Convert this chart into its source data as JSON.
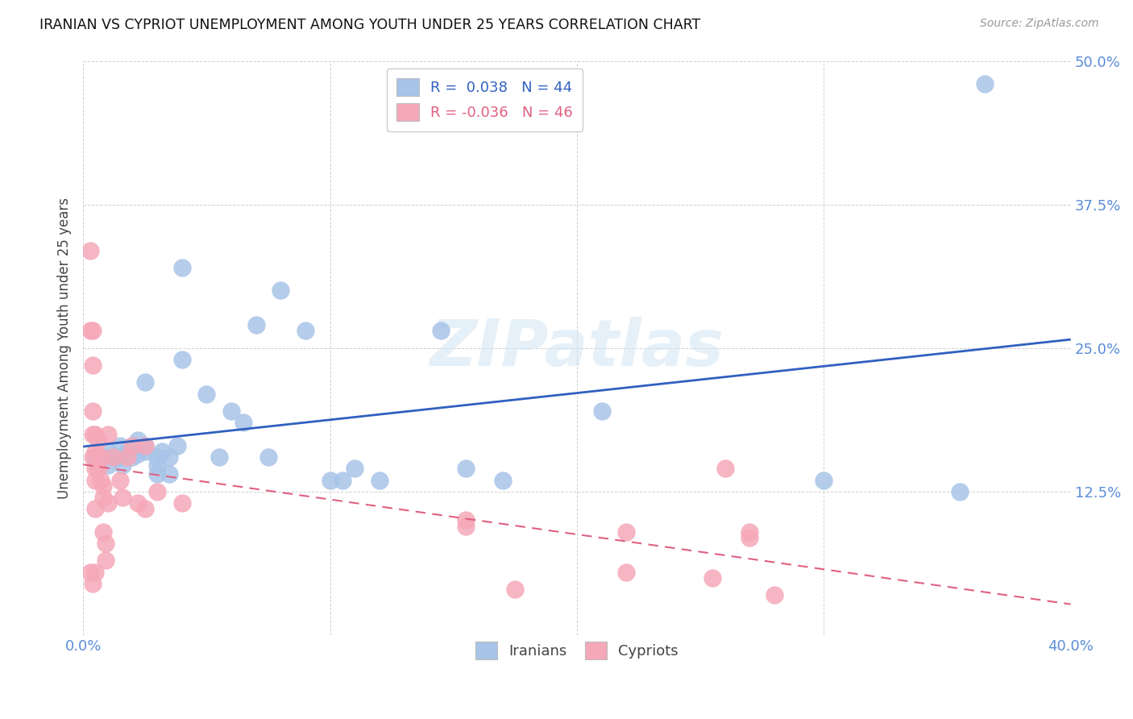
{
  "title": "IRANIAN VS CYPRIOT UNEMPLOYMENT AMONG YOUTH UNDER 25 YEARS CORRELATION CHART",
  "source": "Source: ZipAtlas.com",
  "ylabel": "Unemployment Among Youth under 25 years",
  "xlim": [
    0.0,
    0.4
  ],
  "ylim": [
    0.0,
    0.5
  ],
  "xticks": [
    0.0,
    0.1,
    0.2,
    0.3,
    0.4
  ],
  "xticklabels": [
    "0.0%",
    "",
    "",
    "",
    "40.0%"
  ],
  "yticks": [
    0.0,
    0.125,
    0.25,
    0.375,
    0.5
  ],
  "yticklabels": [
    "",
    "12.5%",
    "25.0%",
    "37.5%",
    "50.0%"
  ],
  "legend_iranian_R": "0.038",
  "legend_iranian_N": "44",
  "legend_cypriot_R": "-0.036",
  "legend_cypriot_N": "46",
  "iranian_color": "#a8c4e8",
  "cypriot_color": "#f5a8b8",
  "trend_iranian_color": "#3060c0",
  "trend_cypriot_color": "#e06080",
  "watermark": "ZIPatlas",
  "iranians_x": [
    0.005,
    0.008,
    0.01,
    0.01,
    0.012,
    0.015,
    0.015,
    0.016,
    0.018,
    0.02,
    0.02,
    0.022,
    0.022,
    0.025,
    0.025,
    0.025,
    0.03,
    0.03,
    0.03,
    0.032,
    0.035,
    0.035,
    0.038,
    0.04,
    0.04,
    0.05,
    0.055,
    0.06,
    0.065,
    0.07,
    0.075,
    0.08,
    0.09,
    0.1,
    0.105,
    0.11,
    0.12,
    0.145,
    0.155,
    0.17,
    0.21,
    0.3,
    0.355,
    0.365
  ],
  "iranians_y": [
    0.155,
    0.155,
    0.16,
    0.148,
    0.155,
    0.165,
    0.155,
    0.148,
    0.16,
    0.165,
    0.155,
    0.17,
    0.158,
    0.165,
    0.22,
    0.16,
    0.155,
    0.148,
    0.14,
    0.16,
    0.155,
    0.14,
    0.165,
    0.32,
    0.24,
    0.21,
    0.155,
    0.195,
    0.185,
    0.27,
    0.155,
    0.3,
    0.265,
    0.135,
    0.135,
    0.145,
    0.135,
    0.265,
    0.145,
    0.135,
    0.195,
    0.135,
    0.125,
    0.48
  ],
  "cypriots_x": [
    0.003,
    0.003,
    0.003,
    0.004,
    0.004,
    0.004,
    0.004,
    0.004,
    0.004,
    0.005,
    0.005,
    0.005,
    0.005,
    0.005,
    0.005,
    0.006,
    0.006,
    0.007,
    0.007,
    0.008,
    0.008,
    0.008,
    0.009,
    0.009,
    0.01,
    0.01,
    0.012,
    0.015,
    0.016,
    0.018,
    0.02,
    0.022,
    0.025,
    0.025,
    0.03,
    0.04,
    0.155,
    0.155,
    0.175,
    0.22,
    0.22,
    0.255,
    0.26,
    0.27,
    0.27,
    0.28
  ],
  "cypriots_y": [
    0.335,
    0.265,
    0.055,
    0.265,
    0.235,
    0.195,
    0.175,
    0.155,
    0.045,
    0.175,
    0.16,
    0.145,
    0.135,
    0.11,
    0.055,
    0.17,
    0.145,
    0.155,
    0.135,
    0.13,
    0.12,
    0.09,
    0.08,
    0.065,
    0.175,
    0.115,
    0.155,
    0.135,
    0.12,
    0.155,
    0.165,
    0.115,
    0.165,
    0.11,
    0.125,
    0.115,
    0.1,
    0.095,
    0.04,
    0.09,
    0.055,
    0.05,
    0.145,
    0.09,
    0.085,
    0.035
  ]
}
